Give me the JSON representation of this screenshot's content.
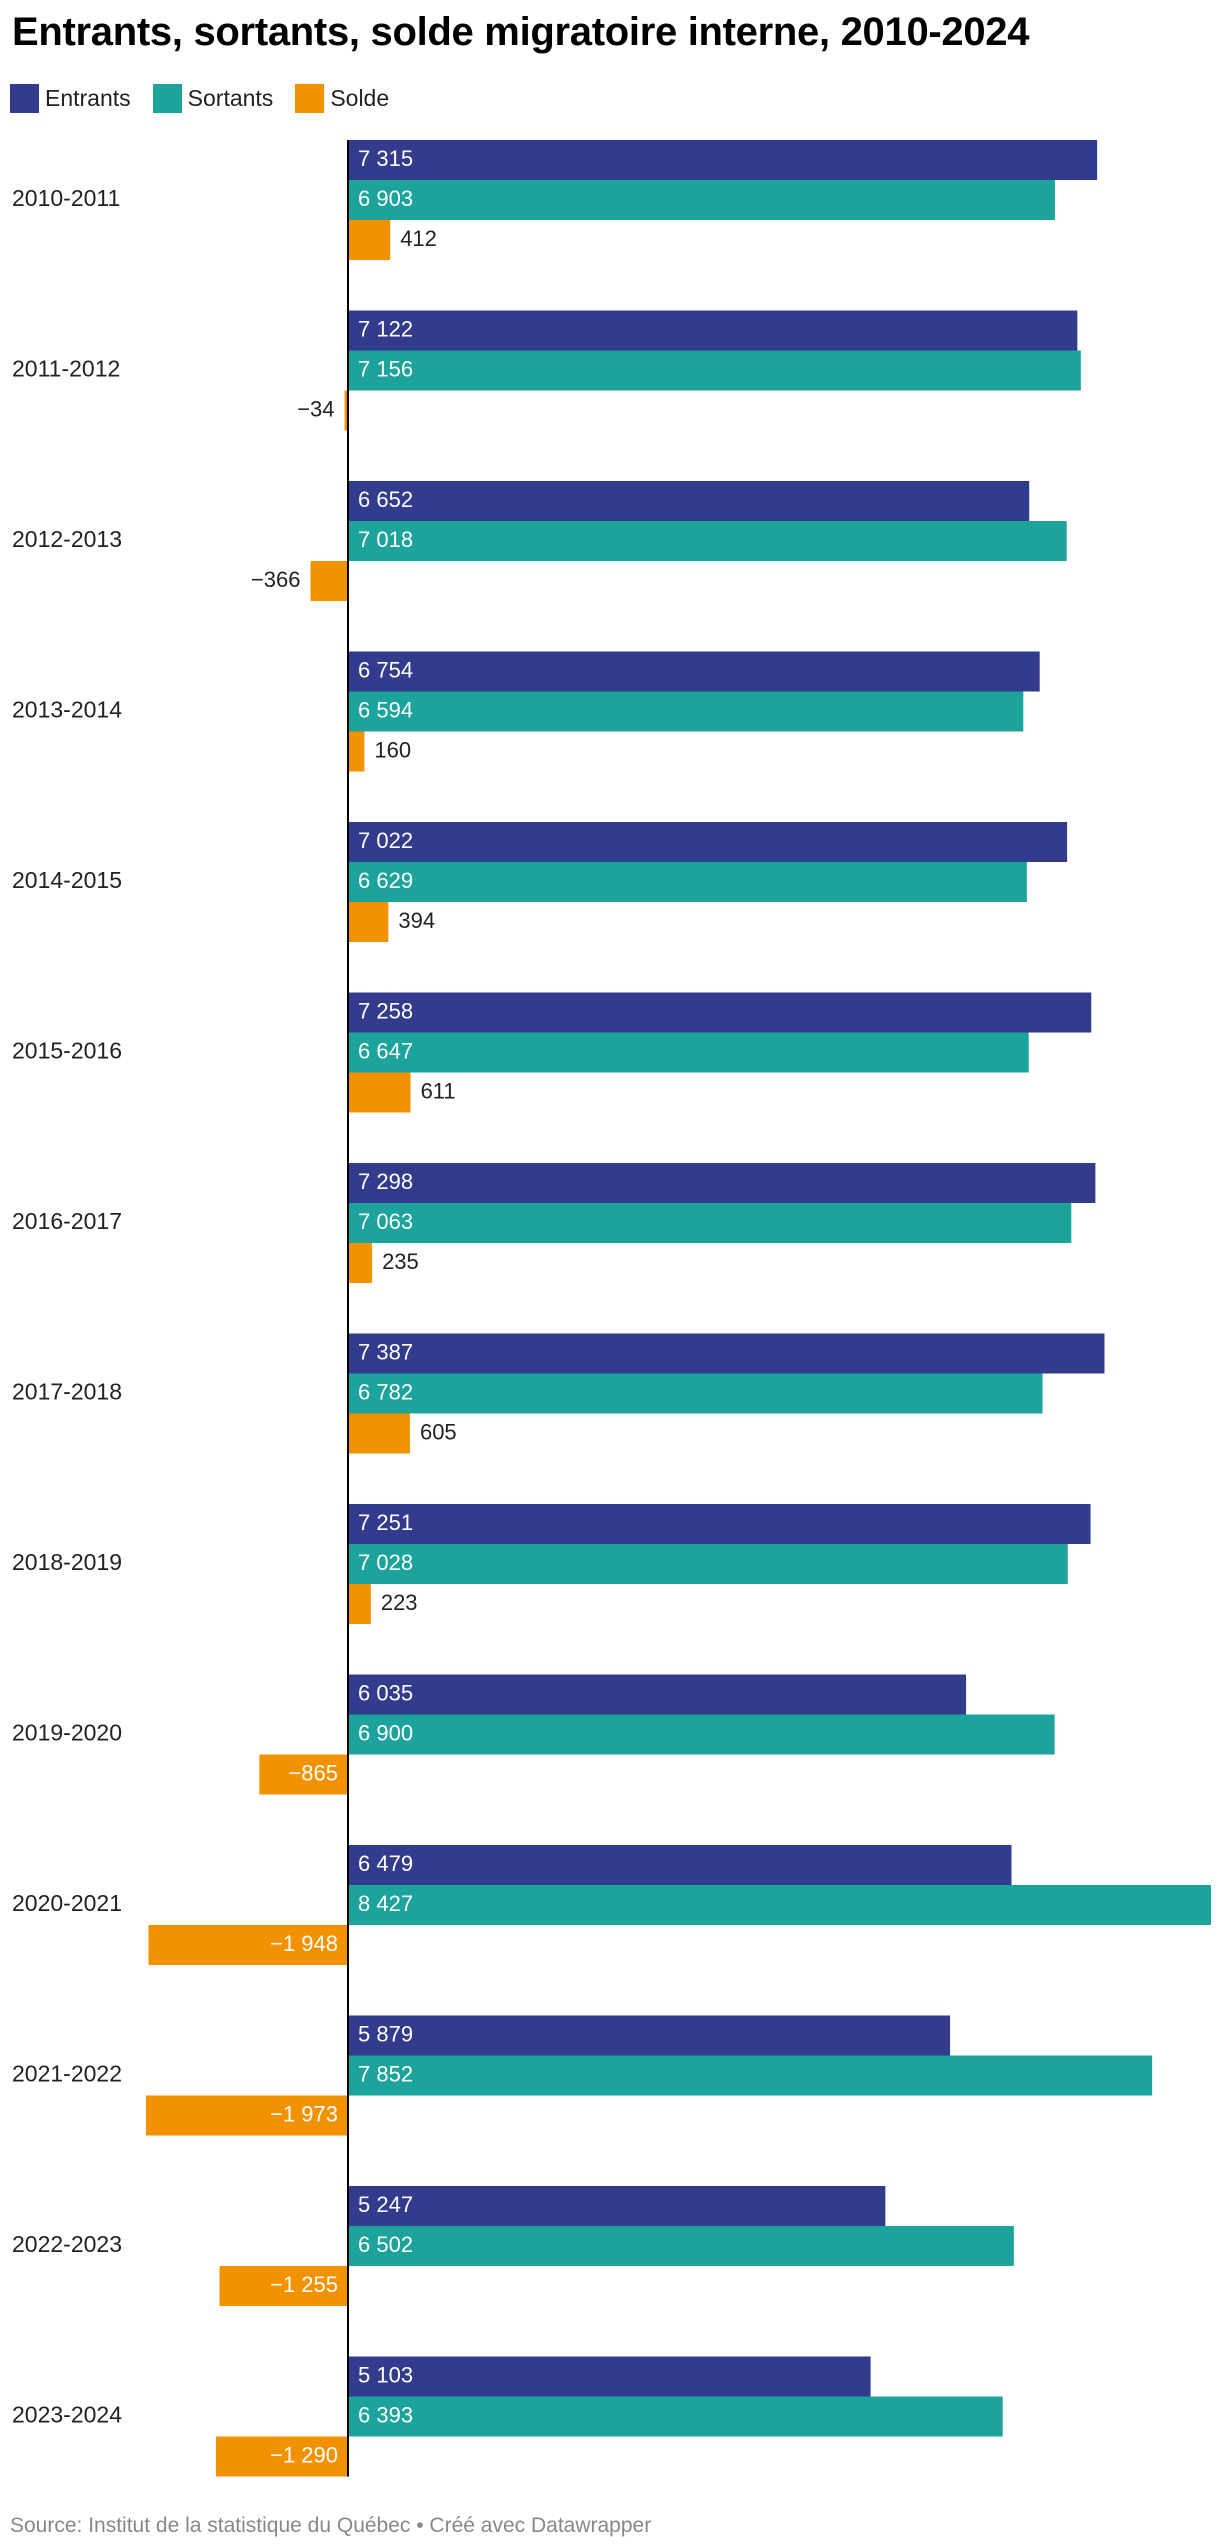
{
  "chart_data": {
    "type": "bar",
    "orientation": "horizontal",
    "title": "Entrants, sortants, solde migratoire interne, 2010-2024",
    "categories": [
      "2010-2011",
      "2011-2012",
      "2012-2013",
      "2013-2014",
      "2014-2015",
      "2015-2016",
      "2016-2017",
      "2017-2018",
      "2018-2019",
      "2019-2020",
      "2020-2021",
      "2021-2022",
      "2022-2023",
      "2023-2024"
    ],
    "value_labels": {
      "Entrants": [
        "7 315",
        "7 122",
        "6 652",
        "6 754",
        "7 022",
        "7 258",
        "7 298",
        "7 387",
        "7 251",
        "6 035",
        "6 479",
        "5 879",
        "5 247",
        "5 103"
      ],
      "Sortants": [
        "6 903",
        "7 156",
        "7 018",
        "6 594",
        "6 629",
        "6 647",
        "7 063",
        "6 782",
        "7 028",
        "6 900",
        "8 427",
        "7 852",
        "6 502",
        "6 393"
      ],
      "Solde": [
        "412",
        "−34",
        "−366",
        "160",
        "394",
        "611",
        "235",
        "605",
        "223",
        "−865",
        "−1 948",
        "−1 973",
        "−1 255",
        "−1 290"
      ]
    },
    "series": [
      {
        "name": "Entrants",
        "color": "#323b8c",
        "values": [
          7315,
          7122,
          6652,
          6754,
          7022,
          7258,
          7298,
          7387,
          7251,
          6035,
          6479,
          5879,
          5247,
          5103
        ]
      },
      {
        "name": "Sortants",
        "color": "#1ba39c",
        "values": [
          6903,
          7156,
          7018,
          6594,
          6629,
          6647,
          7063,
          6782,
          7028,
          6900,
          8427,
          7852,
          6502,
          6393
        ]
      },
      {
        "name": "Solde",
        "color": "#f39200",
        "values": [
          412,
          -34,
          -366,
          160,
          394,
          611,
          235,
          605,
          223,
          -865,
          -1948,
          -1973,
          -1255,
          -1290
        ]
      }
    ],
    "legend_position": "top-left",
    "grid": false
  },
  "source": "Source: Institut de la statistique du Québec • Créé avec Datawrapper"
}
